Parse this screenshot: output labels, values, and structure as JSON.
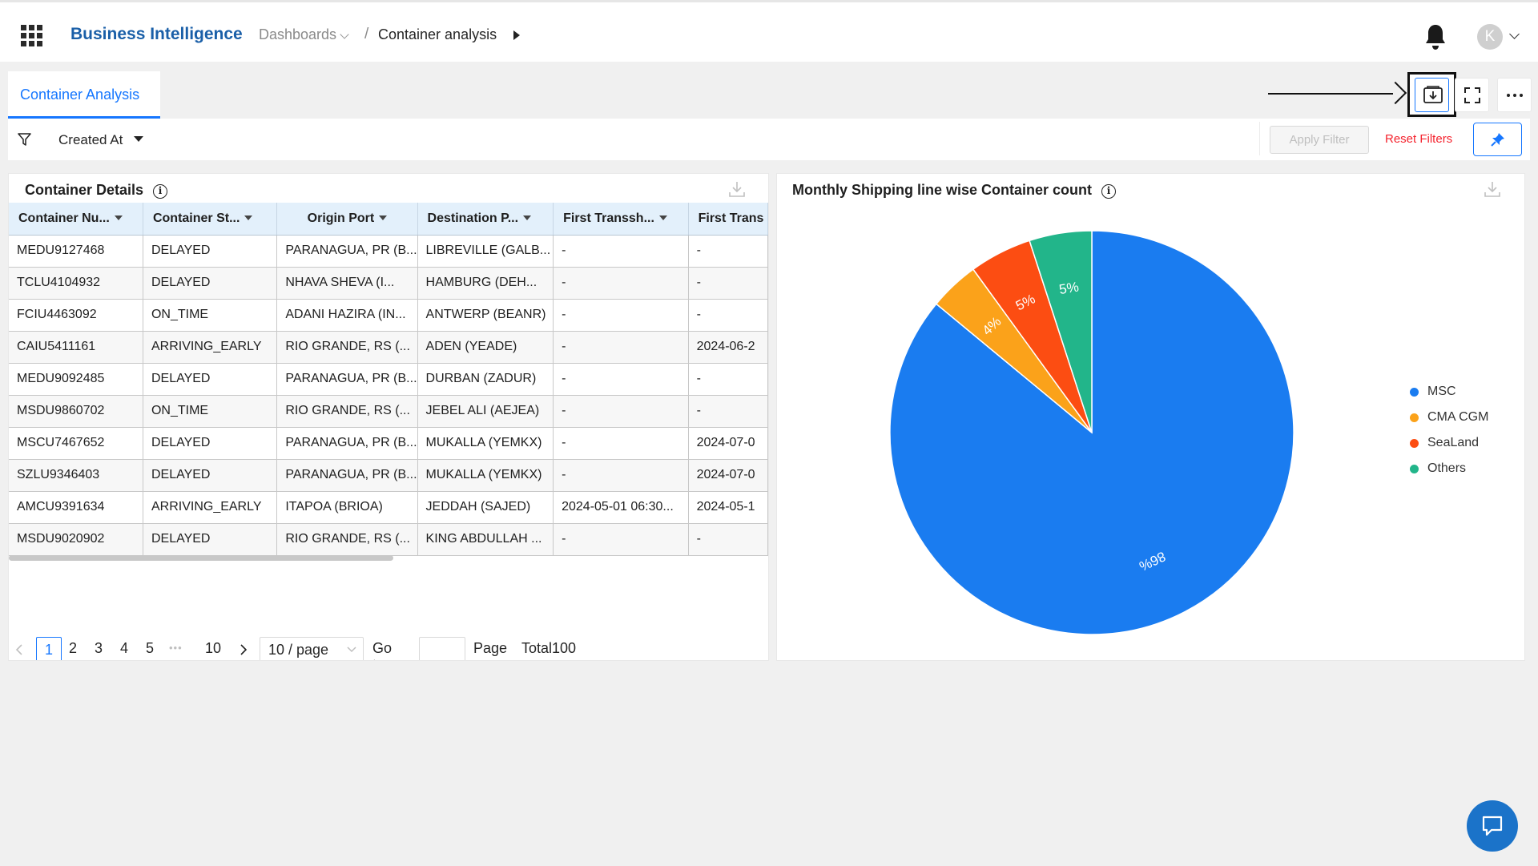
{
  "header": {
    "brand": "Business Intelligence",
    "breadcrumb_parent": "Dashboards",
    "breadcrumb_sep": "/",
    "breadcrumb_current": "Container analysis",
    "avatar_initial": "K"
  },
  "tabs": [
    {
      "label": "Container Analysis",
      "active": true
    }
  ],
  "toolbar": {
    "icons": [
      "download-dashboard-icon",
      "fullscreen-icon",
      "more-icon"
    ],
    "highlighted": "download-dashboard-icon"
  },
  "filters": {
    "created_at_label": "Created At",
    "apply_label": "Apply Filter",
    "reset_label": "Reset Filters"
  },
  "table_panel": {
    "title": "Container Details",
    "columns": [
      "Container Nu...",
      "Container St...",
      "Origin Port",
      "Destination P...",
      "First Transsh...",
      "First Trans"
    ],
    "rows": [
      [
        "MEDU9127468",
        "DELAYED",
        "PARANAGUA, PR (B...",
        "LIBREVILLE (GALB...",
        "-",
        "-"
      ],
      [
        "TCLU4104932",
        "DELAYED",
        "NHAVA SHEVA (I...",
        "HAMBURG (DEH...",
        "-",
        "-"
      ],
      [
        "FCIU4463092",
        "ON_TIME",
        "ADANI HAZIRA (IN...",
        "ANTWERP (BEANR)",
        "-",
        "-"
      ],
      [
        "CAIU5411161",
        "ARRIVING_EARLY",
        "RIO GRANDE, RS (...",
        "ADEN (YEADE)",
        "-",
        "2024-06-2"
      ],
      [
        "MEDU9092485",
        "DELAYED",
        "PARANAGUA, PR (B...",
        "DURBAN (ZADUR)",
        "-",
        "-"
      ],
      [
        "MSDU9860702",
        "ON_TIME",
        "RIO GRANDE, RS (...",
        "JEBEL ALI (AEJEA)",
        "-",
        "-"
      ],
      [
        "MSCU7467652",
        "DELAYED",
        "PARANAGUA, PR (B...",
        "MUKALLA (YEMKX)",
        "-",
        "2024-07-0"
      ],
      [
        "SZLU9346403",
        "DELAYED",
        "PARANAGUA, PR (B...",
        "MUKALLA (YEMKX)",
        "-",
        "2024-07-0"
      ],
      [
        "AMCU9391634",
        "ARRIVING_EARLY",
        "ITAPOA (BRIOA)",
        "JEDDAH (SAJED)",
        "2024-05-01 06:30...",
        "2024-05-1"
      ],
      [
        "MSDU9020902",
        "DELAYED",
        "RIO GRANDE, RS (...",
        "KING ABDULLAH ...",
        "-",
        "-"
      ]
    ],
    "pagination": {
      "current": "1",
      "pages": [
        "2",
        "3",
        "4",
        "5"
      ],
      "ellipsis": "•••",
      "last": "10",
      "page_size": "10 / page",
      "goto_label": "Go to",
      "page_label": "Page",
      "total_label": "Total100"
    }
  },
  "chart_panel": {
    "title": "Monthly Shipping line wise Container count"
  },
  "chart_data": {
    "type": "pie",
    "title": "Monthly Shipping line wise Container count",
    "slices": [
      {
        "name": "MSC",
        "value": 86,
        "label": "86%",
        "color": "#1a7cf0"
      },
      {
        "name": "CMA CGM",
        "value": 4,
        "label": "4%",
        "color": "#fba21a"
      },
      {
        "name": "SeaLand",
        "value": 5,
        "label": "5%",
        "color": "#fc4d12"
      },
      {
        "name": "Others",
        "value": 5,
        "label": "5%",
        "color": "#22b58a"
      }
    ],
    "legend_position": "right"
  }
}
